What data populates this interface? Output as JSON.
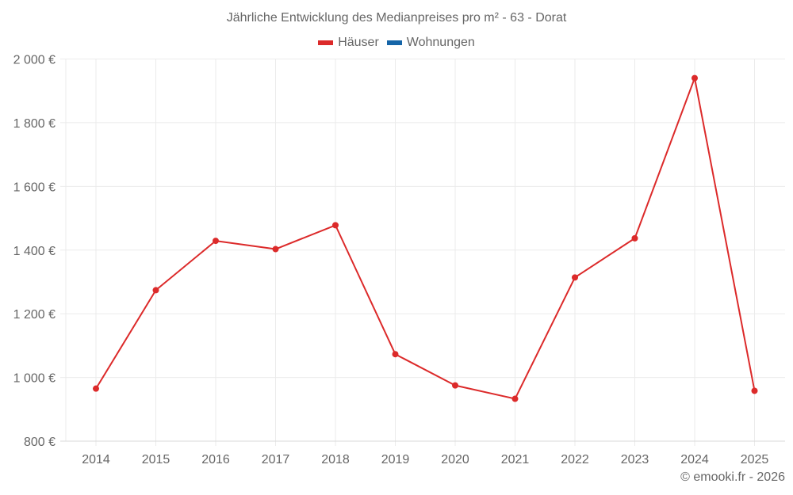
{
  "title": "Jährliche Entwicklung des Medianpreises pro m² - 63 - Dorat",
  "legend": [
    {
      "label": "Häuser",
      "color": "#dc2a2a"
    },
    {
      "label": "Wohnungen",
      "color": "#1565a8"
    }
  ],
  "credit": "© emooki.fr - 2026",
  "colors": {
    "grid": "#ebebeb",
    "axis": "#d9d9d9",
    "text": "#666666",
    "series": "#dc2a2a"
  },
  "chart_data": {
    "type": "line",
    "title": "Jährliche Entwicklung des Medianpreises pro m² - 63 - Dorat",
    "xlabel": "",
    "ylabel": "",
    "categories": [
      "2014",
      "2015",
      "2016",
      "2017",
      "2018",
      "2019",
      "2020",
      "2021",
      "2022",
      "2023",
      "2024",
      "2025"
    ],
    "series": [
      {
        "name": "Häuser",
        "color": "#dc2a2a",
        "values": [
          965,
          1274,
          1429,
          1403,
          1478,
          1073,
          975,
          933,
          1314,
          1437,
          1940,
          958
        ]
      },
      {
        "name": "Wohnungen",
        "color": "#1565a8",
        "values": []
      }
    ],
    "ylim": [
      800,
      2000
    ],
    "yticks": [
      800,
      1000,
      1200,
      1400,
      1600,
      1800,
      2000
    ],
    "ytick_labels": [
      "800 €",
      "1 000 €",
      "1 200 €",
      "1 400 €",
      "1 600 €",
      "1 800 €",
      "2 000 €"
    ],
    "grid": true,
    "legend_position": "top"
  }
}
